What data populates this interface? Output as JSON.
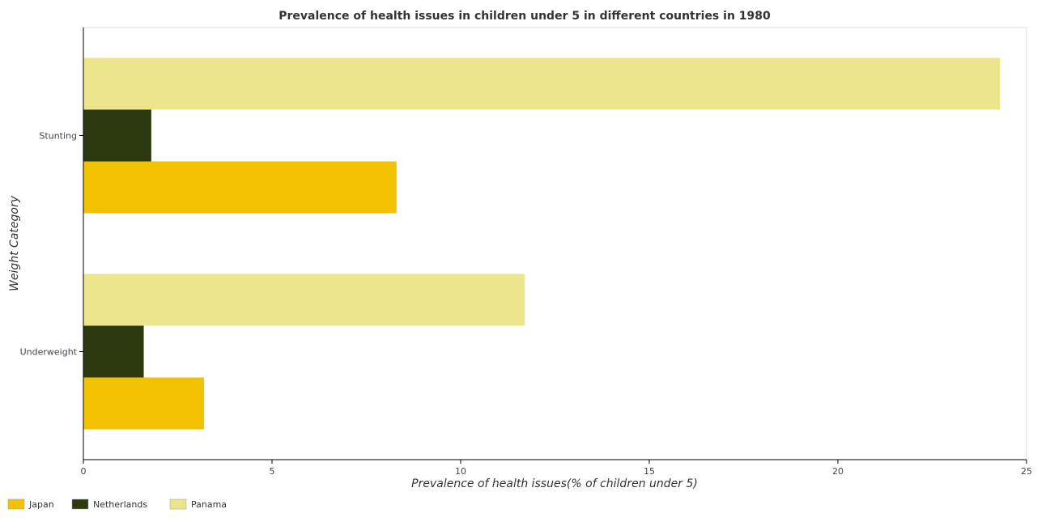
{
  "chart_data": {
    "type": "bar",
    "orientation": "horizontal",
    "title": "Prevalence of health issues in children under 5 in different countries in 1980",
    "xlabel": "Prevalence of health issues(% of children under 5)",
    "ylabel": "Weight Category",
    "categories": [
      "Stunting",
      "Underweight"
    ],
    "series": [
      {
        "name": "Japan",
        "color": "#f2c200",
        "values": [
          8.3,
          3.2
        ]
      },
      {
        "name": "Netherlands",
        "color": "#2d3a0f",
        "values": [
          1.8,
          1.6
        ]
      },
      {
        "name": "Panama",
        "color": "#ede58c",
        "values": [
          24.3,
          11.7
        ]
      }
    ],
    "xlim": [
      0,
      25
    ],
    "xticks": [
      0,
      5,
      10,
      15,
      20,
      25
    ],
    "grid": false,
    "legend_position": "bottom-left"
  }
}
